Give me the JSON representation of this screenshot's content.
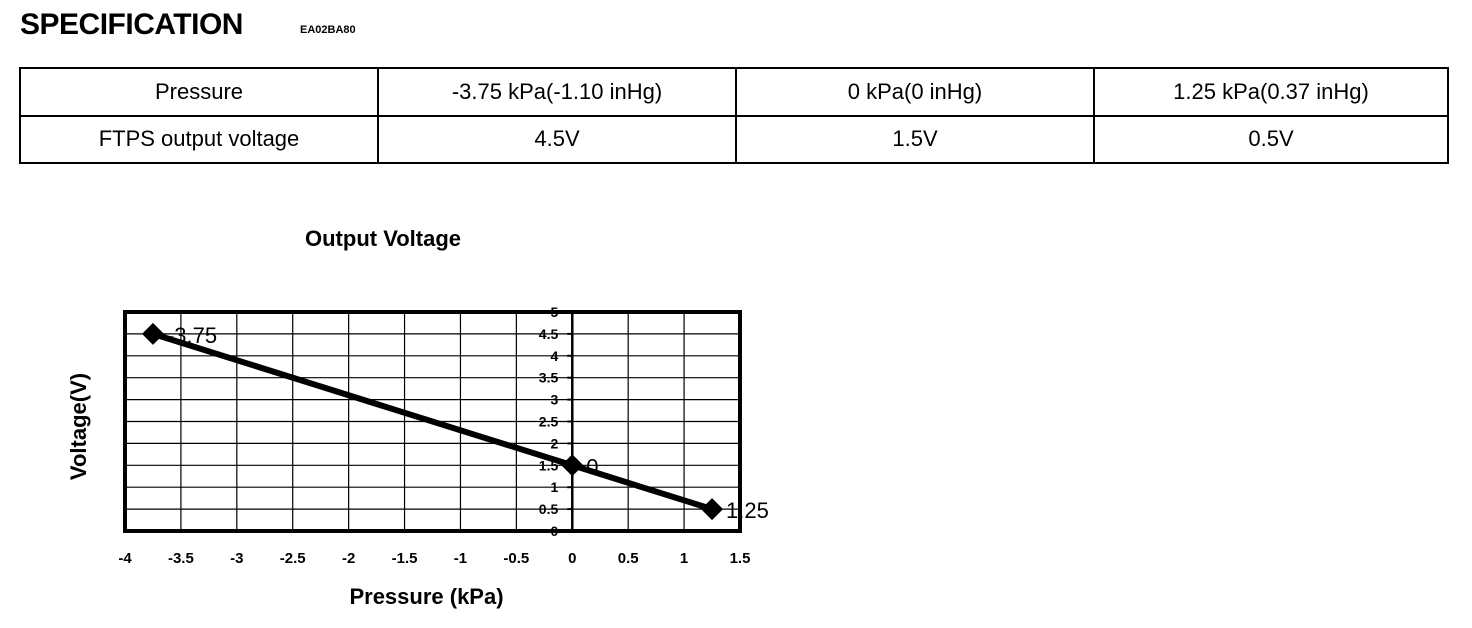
{
  "header": {
    "title": "SPECIFICATION",
    "code": "EA02BA80"
  },
  "spec_table": {
    "rows": [
      [
        "Pressure",
        "-3.75 kPa(-1.10 inHg)",
        "0 kPa(0 inHg)",
        "1.25 kPa(0.37 inHg)"
      ],
      [
        "FTPS output voltage",
        "4.5V",
        "1.5V",
        "0.5V"
      ]
    ]
  },
  "chart_data": {
    "type": "line",
    "title": "Output Voltage",
    "xlabel": "Pressure (kPa)",
    "ylabel": "Voltage(V)",
    "xlim": [
      -4,
      1.5
    ],
    "ylim": [
      0,
      5
    ],
    "x_ticks": [
      "-4",
      "-3.5",
      "-3",
      "-2.5",
      "-2",
      "-1.5",
      "-1",
      "-0.5",
      "0",
      "0.5",
      "1",
      "1.5"
    ],
    "y_ticks": [
      "0",
      "0.5",
      "1",
      "1.5",
      "2",
      "2.5",
      "3",
      "3.5",
      "4",
      "4.5",
      "5"
    ],
    "grid": true,
    "series": [
      {
        "x": [
          -3.75,
          0,
          1.25
        ],
        "y": [
          4.5,
          1.5,
          0.5
        ],
        "labels": [
          "-3.75",
          "0",
          "1.25"
        ]
      }
    ]
  }
}
